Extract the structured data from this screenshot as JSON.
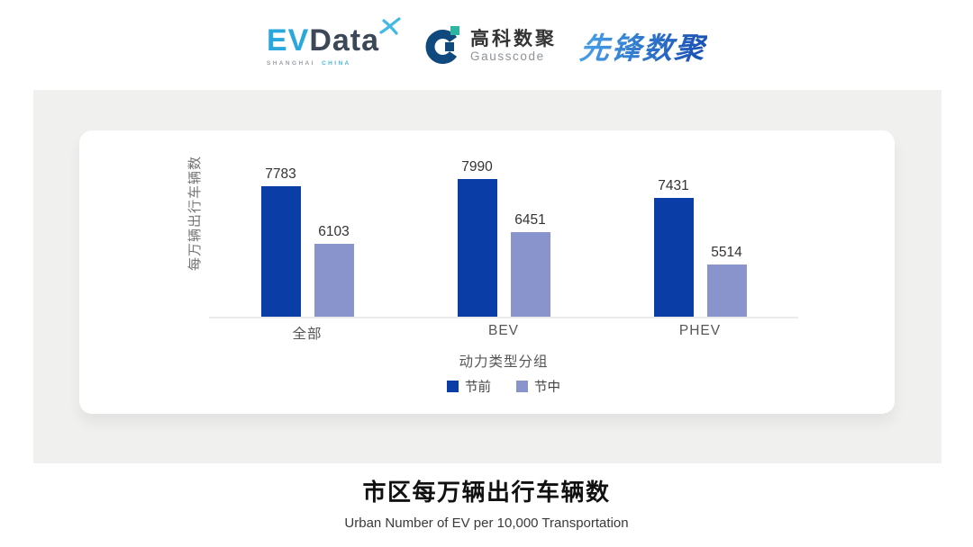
{
  "header": {
    "evdata": {
      "ev": "EV",
      "data": "Data",
      "sub_left": "SHANGHAI",
      "sub_right": "CHINA"
    },
    "gausscode": {
      "cn": "高科数聚",
      "en": "Gausscode"
    },
    "xianfeng": {
      "text": "先锋数聚"
    }
  },
  "chart_data": {
    "type": "bar",
    "categories": [
      "全部",
      "BEV",
      "PHEV"
    ],
    "series": [
      {
        "name": "节前",
        "values": [
          7783,
          7990,
          7431
        ],
        "color": "#0b3da6"
      },
      {
        "name": "节中",
        "values": [
          6103,
          6451,
          5514
        ],
        "color": "#8a94cc"
      }
    ],
    "title": "市区每万辆出行车辆数",
    "xlabel": "动力类型分组",
    "ylabel": "每万辆出行车辆数",
    "ylim": [
      4000,
      9400
    ],
    "grid": false,
    "legend_position": "bottom",
    "value_labels": true
  },
  "footer": {
    "title": "市区每万辆出行车辆数",
    "subtitle": "Urban Number of EV per 10,000 Transportation"
  },
  "colors": {
    "pre_holiday_bar": "#0b3da6",
    "mid_holiday_bar": "#8a94cc",
    "panel_bg": "#f0f0ef",
    "card_bg": "#ffffff",
    "evdata_blue": "#2aa7dd",
    "evdata_dark": "#3c4857",
    "gausscode_navy": "#10497e",
    "gausscode_teal": "#2cb5a0",
    "xianfeng_blue": "#2e7bd0"
  }
}
